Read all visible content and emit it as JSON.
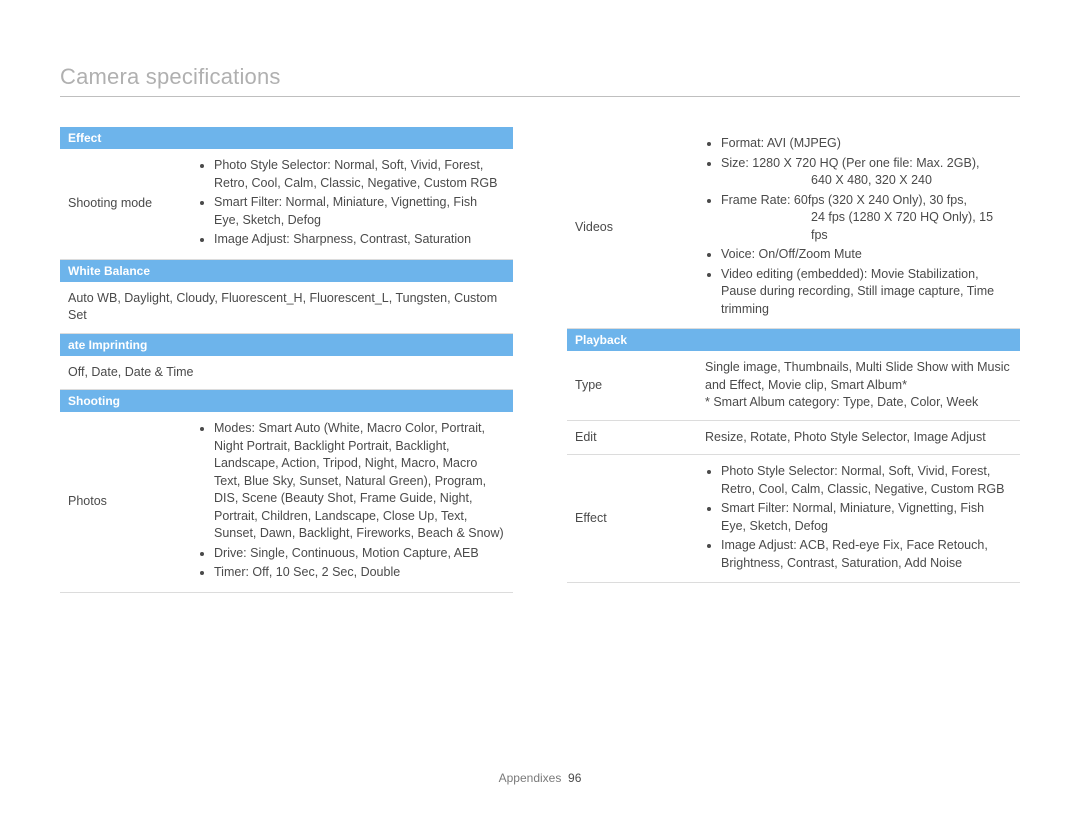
{
  "page_title": "Camera specifications",
  "footer_label": "Appendixes",
  "footer_page": "96",
  "colors": {
    "header_bg": "#6db4eb",
    "header_text": "#ffffff",
    "title_text": "#b0b0b0",
    "body_text": "#4a4a4a",
    "rule": "#bfbfbf",
    "row_border": "#dcdcdc"
  },
  "left": {
    "effect": {
      "header": "Effect",
      "label": "Shooting mode",
      "bullets": [
        "Photo Style Selector: Normal, Soft, Vivid, Forest, Retro, Cool, Calm, Classic, Negative, Custom RGB",
        "Smart Filter: Normal, Miniature, Vignetting, Fish Eye, Sketch, Defog",
        "Image Adjust: Sharpness, Contrast, Saturation"
      ]
    },
    "white_balance": {
      "header": "White Balance",
      "text": "Auto WB, Daylight, Cloudy, Fluorescent_H, Fluorescent_L, Tungsten, Custom Set"
    },
    "date_imprinting": {
      "header": "ate Imprinting",
      "text": "Off, Date, Date & Time"
    },
    "shooting": {
      "header": "Shooting",
      "label": "Photos",
      "bullets": [
        "Modes: Smart Auto (White, Macro Color, Portrait, Night Portrait, Backlight Portrait, Backlight, Landscape, Action, Tripod, Night, Macro, Macro Text, Blue Sky, Sunset, Natural Green), Program, DIS, Scene (Beauty Shot, Frame Guide, Night, Portrait, Children, Landscape, Close Up, Text, Sunset, Dawn, Backlight, Fireworks, Beach & Snow)",
        "Drive: Single, Continuous, Motion Capture, AEB",
        "Timer: Off, 10 Sec, 2 Sec, Double"
      ]
    }
  },
  "right": {
    "videos": {
      "label": "Videos",
      "bullets": [
        "Format: AVI (MJPEG)",
        "Size: 1280 X 720 HQ (Per one file: Max. 2GB),",
        "Frame Rate: 60fps (320 X 240 Only), 30 fps,",
        "Voice: On/Off/Zoom Mute",
        "Video editing (embedded): Movie Stabilization, Pause during recording, Still image capture, Time trimming"
      ],
      "size_indent": "640 X 480, 320 X 240",
      "frame_indent": "24 fps (1280 X 720 HQ Only), 15 fps"
    },
    "playback": {
      "header": "Playback",
      "rows": {
        "type": {
          "label": "Type",
          "text": "Single image, Thumbnails, Multi Slide Show with Music and Effect, Movie clip, Smart Album*\n* Smart Album category: Type, Date, Color, Week"
        },
        "edit": {
          "label": "Edit",
          "text": "Resize, Rotate, Photo Style Selector, Image Adjust"
        },
        "effect": {
          "label": "Effect",
          "bullets": [
            "Photo Style Selector: Normal, Soft, Vivid, Forest, Retro, Cool, Calm, Classic, Negative, Custom RGB",
            "Smart Filter: Normal, Miniature, Vignetting, Fish Eye, Sketch, Defog",
            "Image Adjust: ACB, Red-eye Fix, Face Retouch, Brightness, Contrast, Saturation, Add Noise"
          ]
        }
      }
    }
  }
}
